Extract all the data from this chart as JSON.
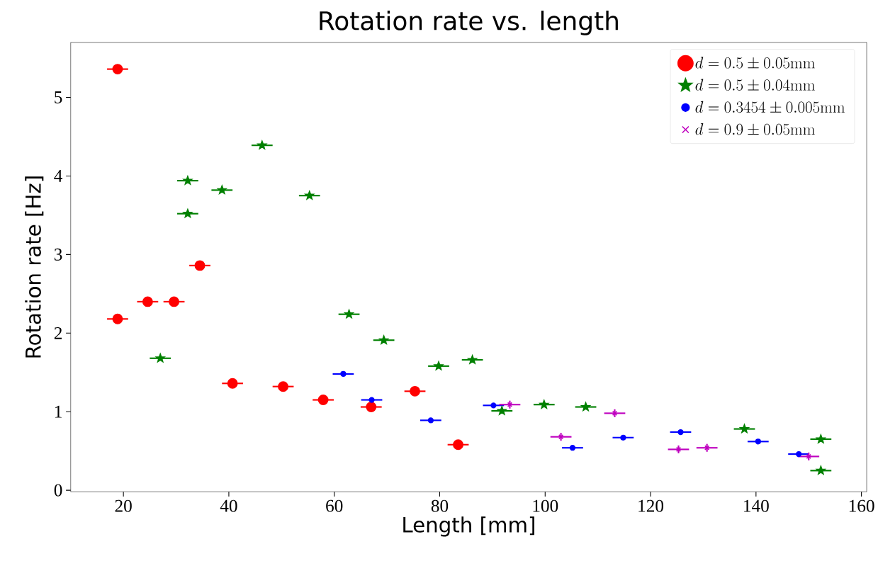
{
  "chart_data": {
    "type": "scatter",
    "title": "Rotation rate vs. length",
    "xlabel": "Length [mm]",
    "ylabel": "Rotation rate [Hz]",
    "xlim": [
      10,
      161
    ],
    "ylim": [
      -0.02,
      5.7
    ],
    "xticks": [
      20,
      40,
      60,
      80,
      100,
      120,
      140,
      160
    ],
    "yticks": [
      0,
      1,
      2,
      3,
      4,
      5
    ],
    "grid": false,
    "legend": "top right",
    "series": [
      {
        "name": "d = 0.5 \\pm 0.05\\mathrm{mm}",
        "color": "#ff0000",
        "marker": "circle",
        "x": [
          18.9,
          18.9,
          24.6,
          29.6,
          34.5,
          40.7,
          50.3,
          57.9,
          67.0,
          75.3,
          83.5
        ],
        "values": [
          5.36,
          2.18,
          2.4,
          2.4,
          2.86,
          1.36,
          1.32,
          1.15,
          1.06,
          1.26,
          0.58
        ],
        "errors": [
          0.06,
          0.06,
          0.06,
          0.06,
          0.06,
          0.06,
          0.06,
          0.06,
          0.06,
          0.06,
          0.06
        ],
        "xerrors": [
          2,
          2,
          2,
          2,
          2,
          2,
          2,
          2,
          2,
          2,
          2
        ]
      },
      {
        "name": "d = 0.5 \\pm 0.04\\mathrm{mm}",
        "color": "#008000",
        "marker": "star",
        "x": [
          27.0,
          32.2,
          32.2,
          38.7,
          46.3,
          55.3,
          62.8,
          69.4,
          79.8,
          86.2,
          91.8,
          99.8,
          107.7,
          137.8,
          152.3,
          152.3
        ],
        "values": [
          1.68,
          3.94,
          3.52,
          3.82,
          4.39,
          3.75,
          2.24,
          1.91,
          1.58,
          1.66,
          1.01,
          1.09,
          1.06,
          0.78,
          0.65,
          0.25
        ],
        "errors": [
          0.03,
          0.03,
          0.03,
          0.03,
          0.03,
          0.03,
          0.03,
          0.03,
          0.03,
          0.03,
          0.03,
          0.03,
          0.03,
          0.03,
          0.03,
          0.03
        ],
        "xerrors": [
          2,
          2,
          2,
          2,
          2,
          2,
          2,
          2,
          2,
          2,
          2,
          2,
          2,
          2,
          2,
          2
        ]
      },
      {
        "name": "d = 0.3454 \\pm 0.005\\mathrm{mm}",
        "color": "#0000ff",
        "marker": "circle",
        "x": [
          61.7,
          67.1,
          78.3,
          90.2,
          105.2,
          114.8,
          125.7,
          140.4,
          148.1
        ],
        "values": [
          1.48,
          1.15,
          0.89,
          1.08,
          0.54,
          0.67,
          0.74,
          0.62,
          0.46
        ],
        "errors": [
          0.02,
          0.02,
          0.02,
          0.02,
          0.02,
          0.02,
          0.02,
          0.02,
          0.02
        ],
        "xerrors": [
          2,
          2,
          2,
          2,
          2,
          2,
          2,
          2,
          2
        ]
      },
      {
        "name": "d = 0.9 \\pm 0.05\\mathrm{mm}",
        "color": "#bf00bf",
        "marker": "cross",
        "x": [
          93.3,
          103.0,
          113.2,
          125.3,
          130.7,
          150.0
        ],
        "values": [
          1.09,
          0.68,
          0.98,
          0.52,
          0.54,
          0.43
        ],
        "errors": [
          0.05,
          0.05,
          0.05,
          0.05,
          0.05,
          0.05
        ],
        "xerrors": [
          2,
          2,
          2,
          2,
          2,
          2
        ]
      }
    ]
  }
}
